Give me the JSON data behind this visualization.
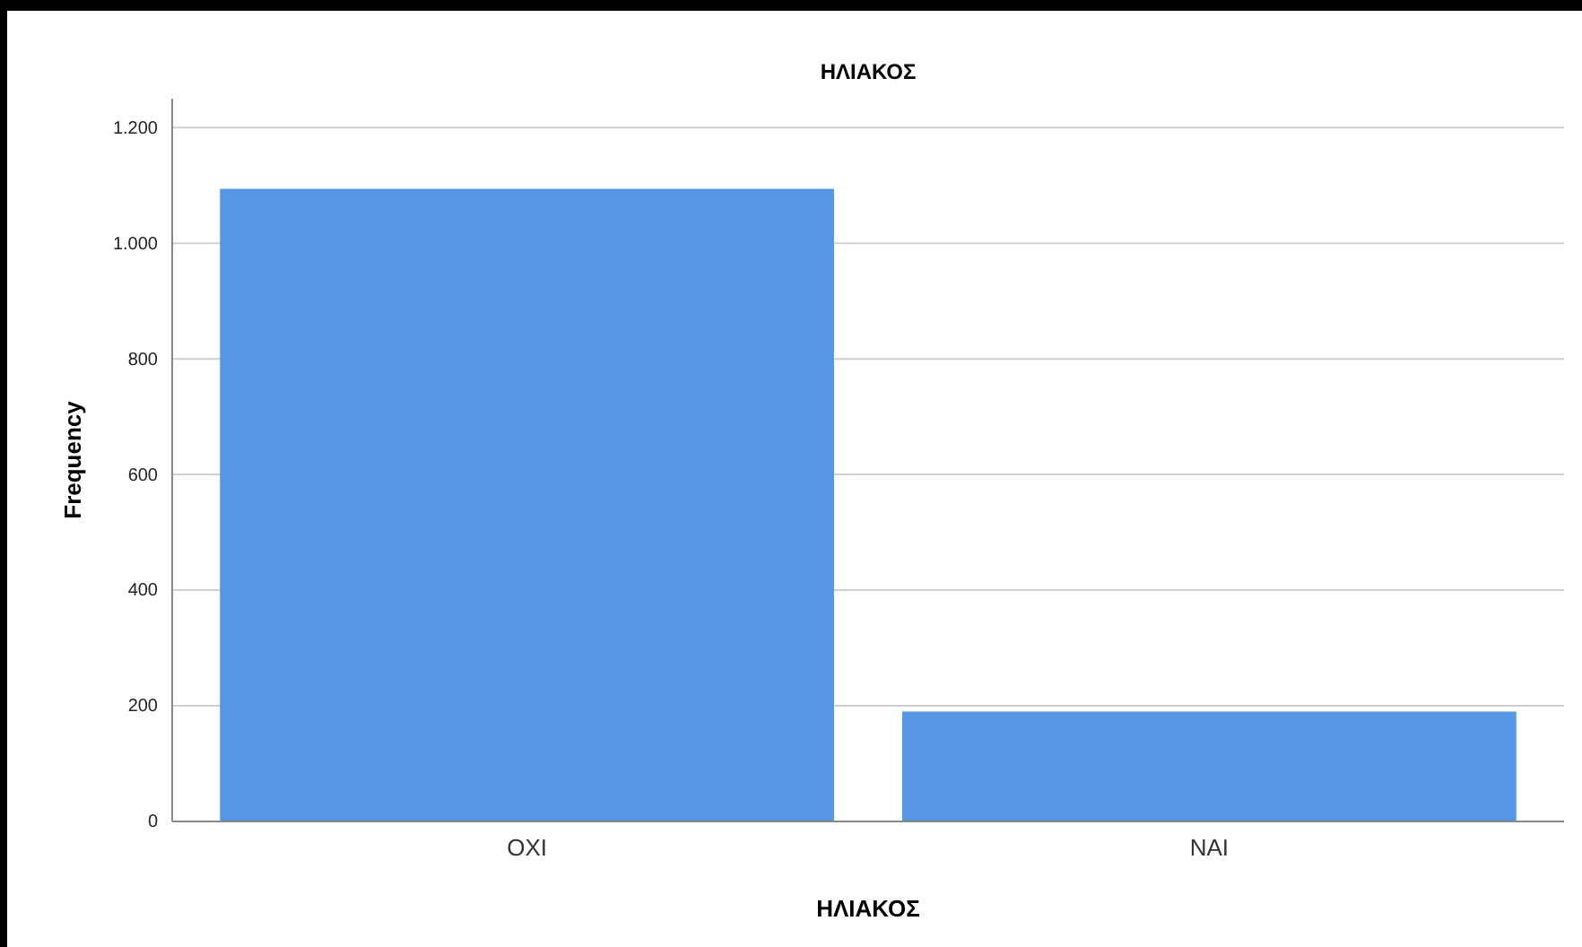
{
  "chart_data": {
    "type": "bar",
    "title": "ΗΛΙΑΚΟΣ",
    "xlabel": "ΗΛΙΑΚΟΣ",
    "ylabel": "Frequency",
    "categories": [
      "ΟΧΙ",
      "ΝΑΙ"
    ],
    "values": [
      1094,
      190
    ],
    "color": "#5597e4",
    "ylim": [
      0,
      1250
    ],
    "yticks": [
      0,
      200,
      400,
      600,
      800,
      {
        "value": 1000,
        "label": "1.000"
      },
      {
        "value": 1200,
        "label": "1.200"
      }
    ],
    "grid": "y"
  }
}
